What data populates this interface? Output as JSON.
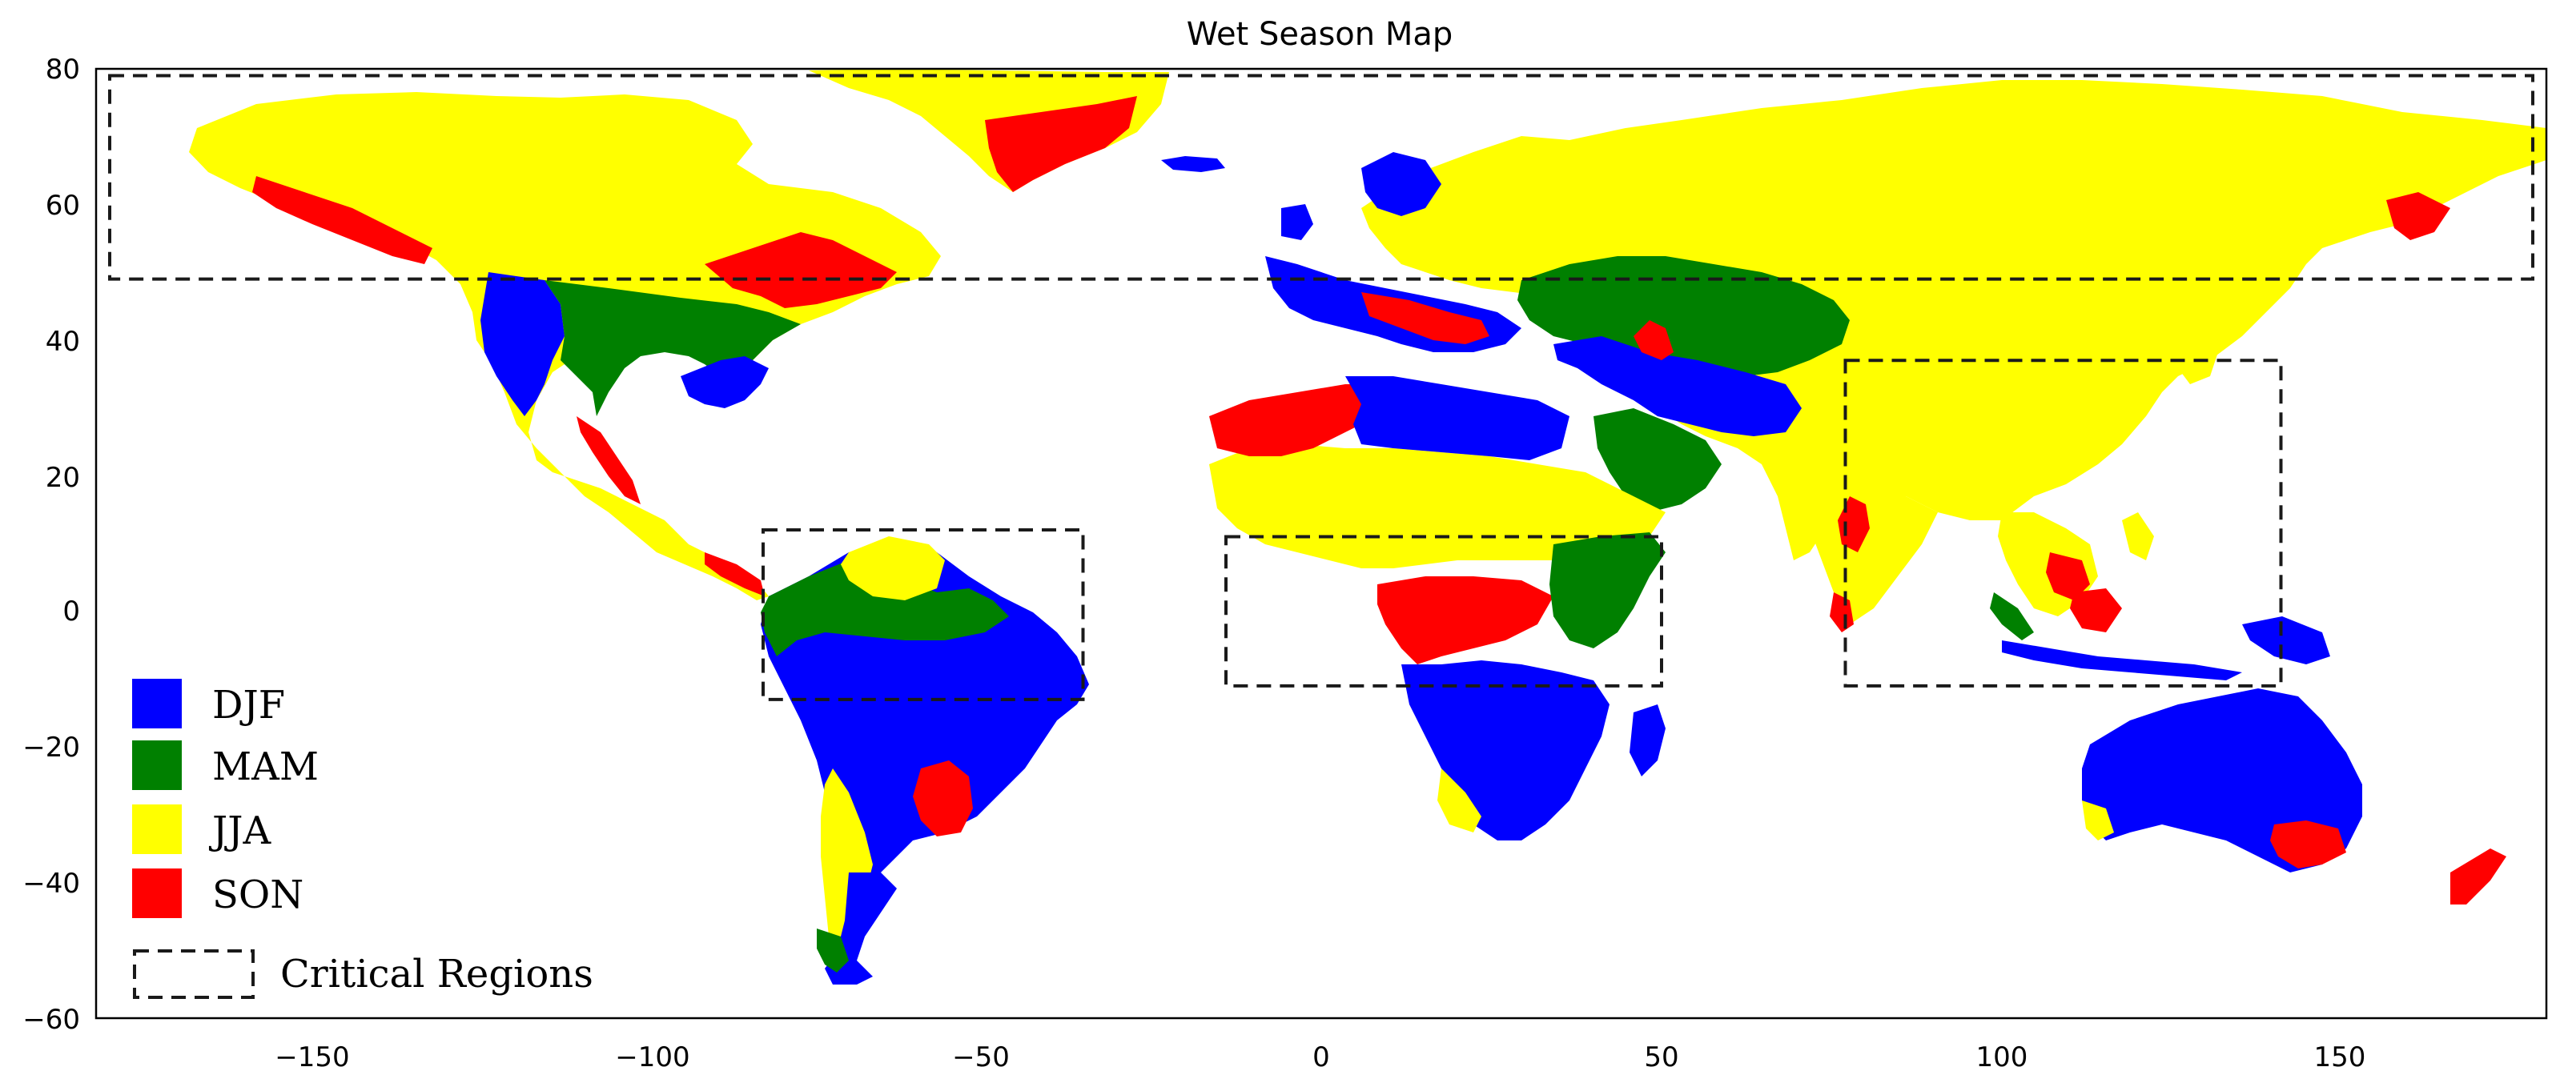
{
  "title": "Wet Season Map",
  "axes": {
    "x_ticks": [
      -150,
      -100,
      -50,
      0,
      50,
      100,
      150
    ],
    "x_tick_labels": [
      "−150",
      "−100",
      "−50",
      "0",
      "50",
      "100",
      "150"
    ],
    "y_ticks": [
      80,
      60,
      40,
      20,
      0,
      -20,
      -40,
      -60
    ],
    "y_tick_labels": [
      "80",
      "60",
      "40",
      "20",
      "0",
      "−20",
      "−40",
      "−60"
    ],
    "x_range": [
      -180,
      180
    ],
    "y_range": [
      -60,
      80
    ]
  },
  "seasons": [
    {
      "key": "DJF",
      "label": "DJF",
      "color": "#0000ff"
    },
    {
      "key": "MAM",
      "label": "MAM",
      "color": "#008000"
    },
    {
      "key": "JJA",
      "label": "JJA",
      "color": "#ffff00"
    },
    {
      "key": "SON",
      "label": "SON",
      "color": "#ff0000"
    }
  ],
  "legend": {
    "items": [
      "DJF",
      "MAM",
      "JJA",
      "SON"
    ],
    "critical_label": "Critical Regions"
  },
  "critical_regions": [
    {
      "lon": [
        -178,
        178
      ],
      "lat": [
        49,
        79
      ]
    },
    {
      "lon": [
        -82,
        -35
      ],
      "lat": [
        -13,
        12
      ]
    },
    {
      "lon": [
        -14,
        50
      ],
      "lat": [
        -11,
        11
      ]
    },
    {
      "lon": [
        77,
        141
      ],
      "lat": [
        -11,
        37
      ]
    }
  ]
}
